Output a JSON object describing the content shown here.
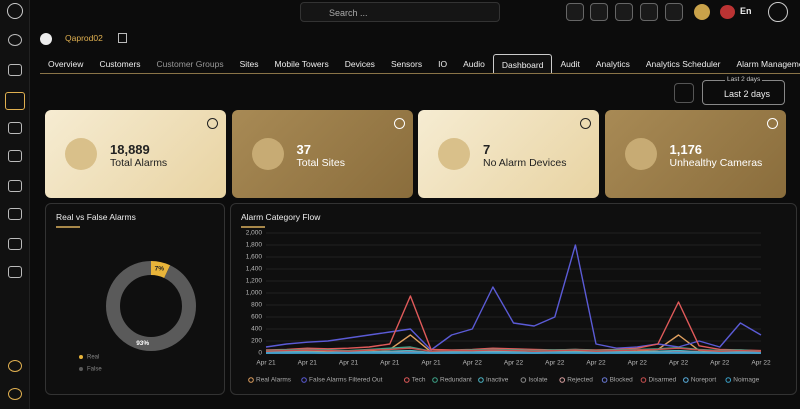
{
  "topbar": {
    "search_placeholder": "Search ...",
    "language": "En"
  },
  "header": {
    "site": "Qaprod02"
  },
  "tabs": [
    "Overview",
    "Customers",
    "Customer Groups",
    "Sites",
    "Mobile Towers",
    "Devices",
    "Sensors",
    "IO",
    "Audio",
    "Dashboard",
    "Audit",
    "Analytics",
    "Analytics Scheduler",
    "Alarm Management S"
  ],
  "active_tab": "Dashboard",
  "range": {
    "caption": "Last 2 days",
    "value": "Last 2 days"
  },
  "cards": [
    {
      "value": "18,889",
      "label": "Total Alarms"
    },
    {
      "value": "37",
      "label": "Total Sites"
    },
    {
      "value": "7",
      "label": "No Alarm Devices"
    },
    {
      "value": "1,176",
      "label": "Unhealthy Cameras"
    }
  ],
  "donut": {
    "title": "Real vs False Alarms",
    "type": "donut",
    "categories": [
      "Real",
      "False"
    ],
    "values": [
      7,
      93
    ],
    "value_labels": [
      "7%",
      "93%"
    ],
    "colors": [
      "#e8b43a",
      "#5a5a5a"
    ]
  },
  "flow": {
    "title": "Alarm Category Flow",
    "type": "line",
    "x": [
      "Apr 21",
      null,
      "Apr 21",
      null,
      "Apr 21",
      null,
      "Apr 21",
      null,
      "Apr 21",
      null,
      "Apr 22",
      null,
      "Apr 22",
      null,
      "Apr 22",
      null,
      "Apr 22",
      null,
      "Apr 22",
      null,
      "Apr 22",
      null,
      "Apr 22",
      null,
      "Apr 22"
    ],
    "ylim": [
      0,
      2000
    ],
    "yticks": [
      0,
      200,
      400,
      600,
      800,
      {
        "value": 1000,
        "label": "1,000"
      },
      {
        "value": 1200,
        "label": "1,200"
      },
      {
        "value": 1400,
        "label": "1,400"
      },
      {
        "value": 1600,
        "label": "1,600"
      },
      {
        "value": 1800,
        "label": "1,800"
      },
      {
        "value": 2000,
        "label": "2,000"
      }
    ],
    "grid": true,
    "series": [
      {
        "name": "Real Alarms",
        "color": "#e0a060",
        "values": [
          20,
          30,
          30,
          20,
          30,
          40,
          60,
          300,
          20,
          30,
          20,
          30,
          40,
          30,
          20,
          30,
          20,
          20,
          30,
          60,
          300,
          40,
          20,
          30,
          20
        ]
      },
      {
        "name": "False Alarms Filtered Out",
        "color": "#5b5bd6",
        "values": [
          100,
          150,
          180,
          200,
          250,
          300,
          350,
          400,
          50,
          300,
          400,
          1100,
          500,
          450,
          600,
          1800,
          150,
          80,
          100,
          150,
          100,
          200,
          100,
          500,
          300
        ]
      },
      {
        "name": "Tech",
        "color": "#e05a5a",
        "values": [
          50,
          60,
          80,
          70,
          80,
          100,
          150,
          950,
          60,
          50,
          60,
          80,
          70,
          60,
          50,
          60,
          50,
          60,
          80,
          150,
          850,
          120,
          60,
          50,
          40
        ]
      },
      {
        "name": "Redundant",
        "color": "#3fa58a",
        "values": [
          40,
          50,
          60,
          50,
          40,
          60,
          80,
          100,
          30,
          40,
          50,
          60,
          50,
          40,
          50,
          60,
          40,
          50,
          60,
          70,
          90,
          60,
          40,
          50,
          30
        ]
      },
      {
        "name": "Inactive",
        "color": "#4db8c8",
        "values": [
          10,
          20,
          20,
          10,
          20,
          20,
          30,
          40,
          10,
          20,
          20,
          30,
          20,
          10,
          20,
          20,
          10,
          20,
          20,
          30,
          40,
          20,
          10,
          20,
          10
        ]
      },
      {
        "name": "Isolate",
        "color": "#8a8a8a",
        "values": [
          5,
          5,
          10,
          5,
          5,
          10,
          10,
          20,
          5,
          5,
          10,
          10,
          5,
          5,
          10,
          10,
          5,
          5,
          10,
          10,
          20,
          10,
          5,
          5,
          5
        ]
      },
      {
        "name": "Rejected",
        "color": "#d9a0a0",
        "values": [
          0,
          5,
          5,
          0,
          5,
          5,
          10,
          10,
          0,
          5,
          5,
          10,
          5,
          0,
          5,
          5,
          0,
          5,
          5,
          10,
          10,
          5,
          0,
          5,
          0
        ]
      },
      {
        "name": "Blocked",
        "color": "#6a7ad6",
        "values": [
          0,
          0,
          5,
          0,
          0,
          5,
          5,
          10,
          0,
          0,
          5,
          5,
          0,
          0,
          5,
          5,
          0,
          0,
          5,
          5,
          10,
          5,
          0,
          0,
          0
        ]
      },
      {
        "name": "Disarmed",
        "color": "#c85050",
        "values": [
          30,
          40,
          50,
          40,
          30,
          50,
          60,
          80,
          30,
          40,
          40,
          50,
          40,
          30,
          40,
          50,
          30,
          40,
          50,
          60,
          80,
          50,
          30,
          40,
          30
        ]
      },
      {
        "name": "Noreport",
        "color": "#5ab0e0",
        "values": [
          0,
          0,
          0,
          0,
          0,
          0,
          0,
          0,
          0,
          0,
          0,
          0,
          0,
          0,
          0,
          0,
          0,
          0,
          0,
          0,
          0,
          0,
          0,
          0,
          0
        ]
      },
      {
        "name": "Noimage",
        "color": "#3aa0c8",
        "values": [
          0,
          0,
          0,
          0,
          0,
          0,
          0,
          0,
          0,
          0,
          0,
          0,
          0,
          0,
          0,
          0,
          0,
          0,
          0,
          0,
          0,
          0,
          0,
          0,
          0
        ]
      }
    ]
  }
}
